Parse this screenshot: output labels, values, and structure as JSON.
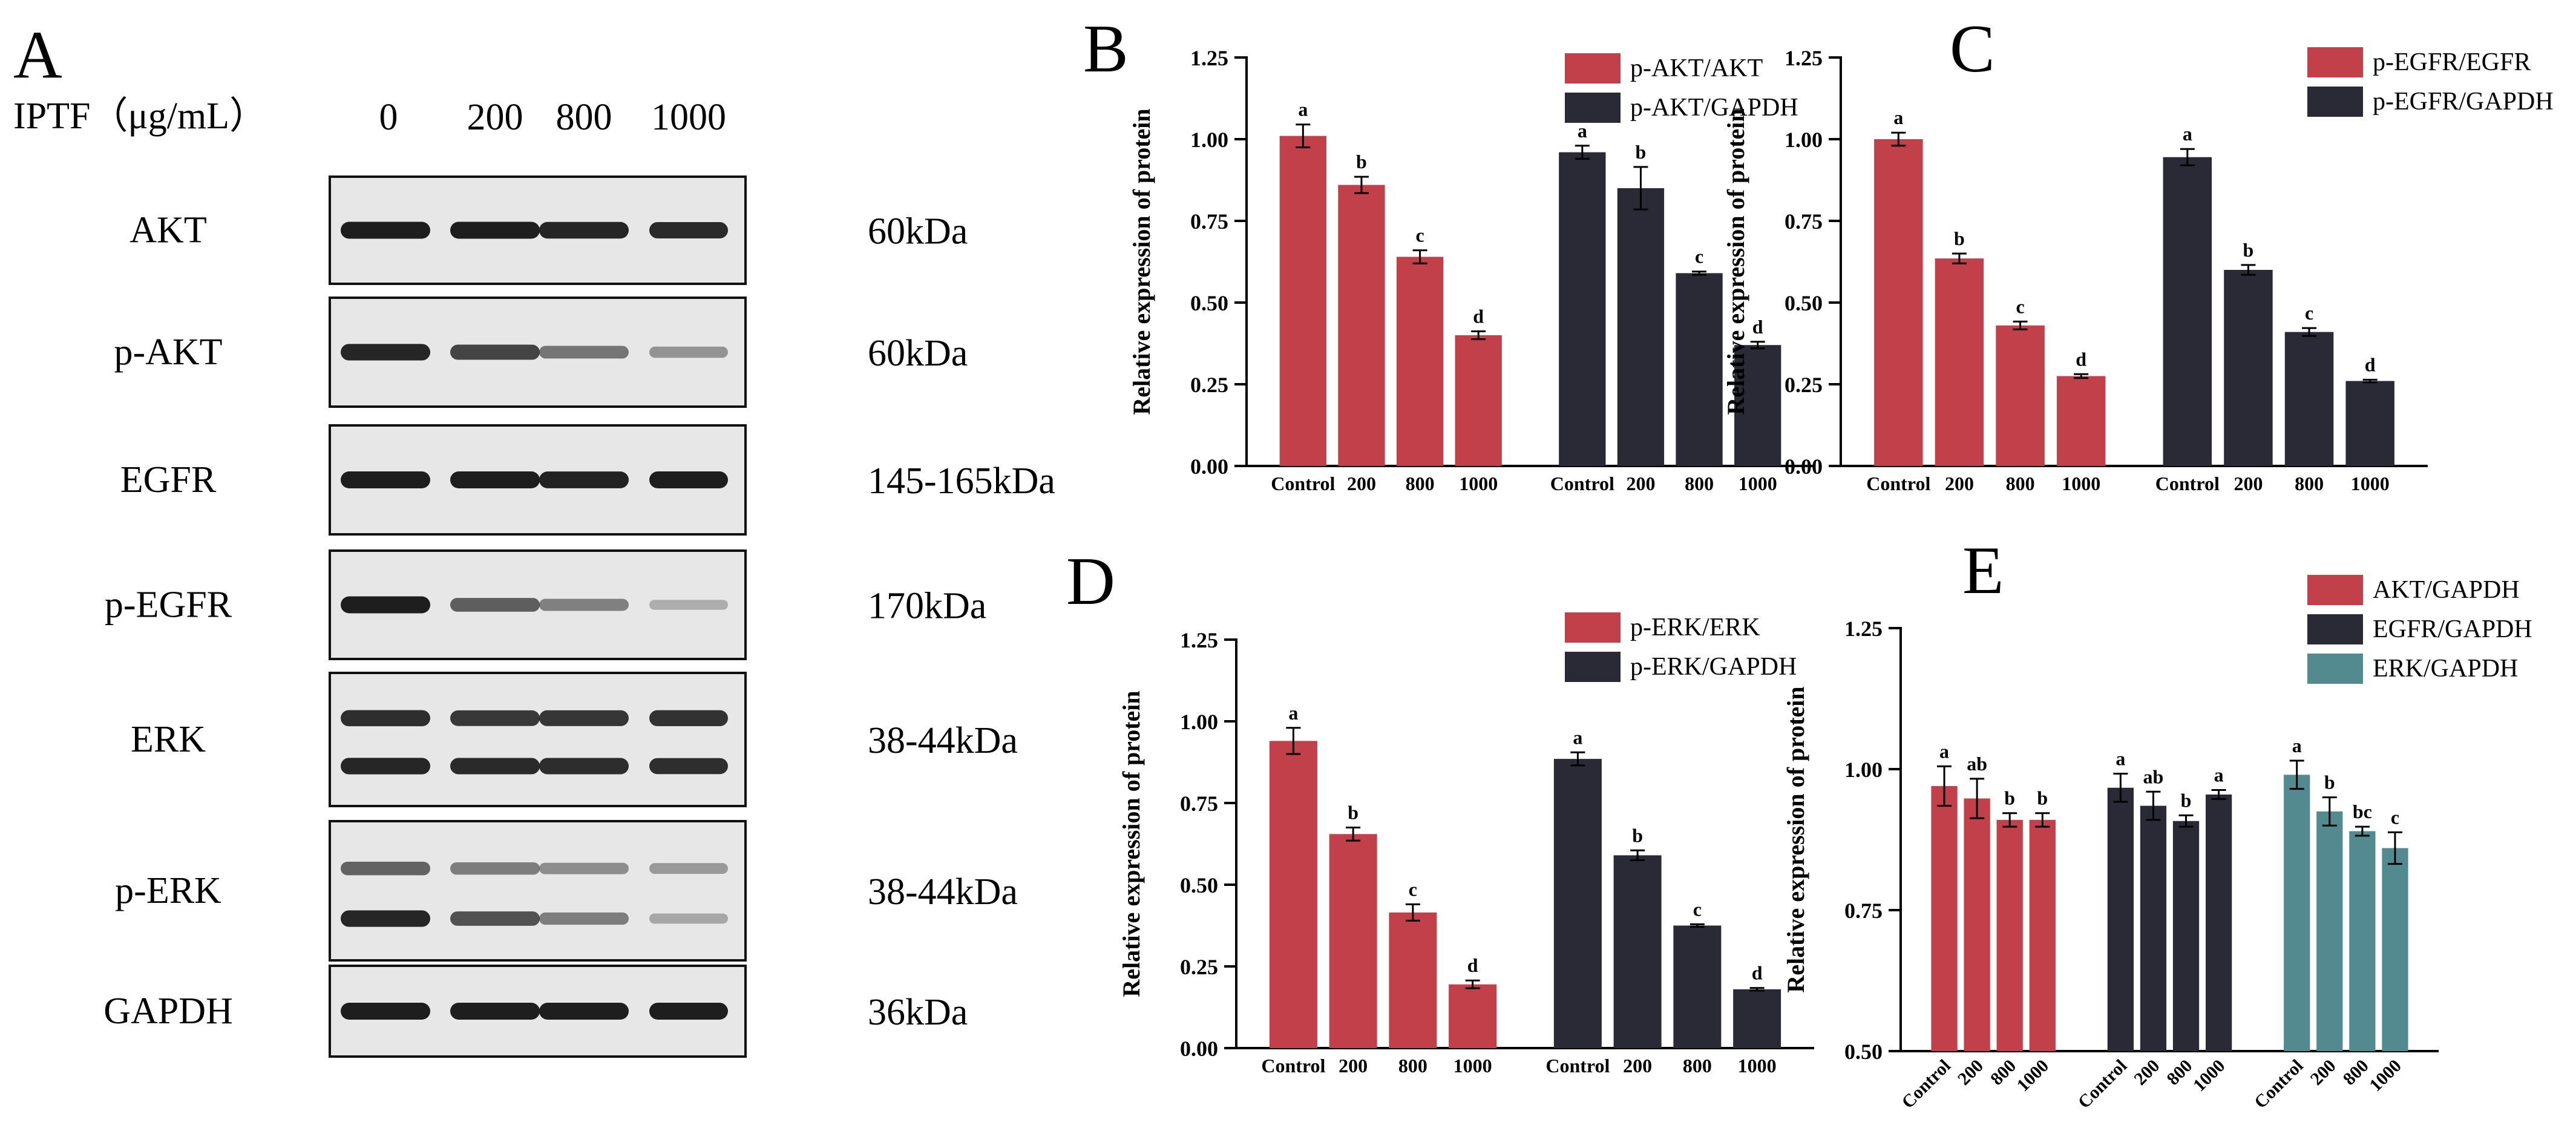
{
  "colors": {
    "red": "#C1404A",
    "dark": "#292A36",
    "teal": "#538A8F",
    "blot_bg": "#E7E7E7",
    "band": "#1E1E1E"
  },
  "panel_a": {
    "letter": "A",
    "treatment_label": "IPTF（μg/mL）",
    "doses": [
      "0",
      "200",
      "800",
      "1000"
    ],
    "rows": [
      {
        "protein": "AKT",
        "size": "60kDa",
        "bands": [
          [
            1,
            1,
            0.96,
            0.93
          ]
        ]
      },
      {
        "protein": "p-AKT",
        "size": "60kDa",
        "bands": [
          [
            0.95,
            0.78,
            0.5,
            0.32
          ]
        ]
      },
      {
        "protein": "EGFR",
        "size": "145-165kDa",
        "bands": [
          [
            1,
            1,
            0.98,
            1
          ]
        ]
      },
      {
        "protein": "p-EGFR",
        "size": "170kDa",
        "bands": [
          [
            1,
            0.62,
            0.42,
            0.16
          ]
        ]
      },
      {
        "protein": "ERK",
        "size": "38-44kDa",
        "bands": [
          [
            0.9,
            0.85,
            0.86,
            0.88
          ],
          [
            0.95,
            0.93,
            0.92,
            0.9
          ]
        ]
      },
      {
        "protein": "p-ERK",
        "size": "38-44kDa",
        "bands": [
          [
            0.6,
            0.45,
            0.35,
            0.28
          ],
          [
            0.95,
            0.7,
            0.45,
            0.2
          ]
        ]
      },
      {
        "protein": "GAPDH",
        "size": "36kDa",
        "bands": [
          [
            1,
            1,
            1,
            1
          ]
        ]
      }
    ]
  },
  "chart_data": [
    {
      "panel": "B",
      "type": "bar",
      "title": "",
      "ylabel": "Relative expression of protein",
      "xlabel": "",
      "ylim": [
        0,
        1.25
      ],
      "yticks": [
        "0.00",
        "0.25",
        "0.50",
        "0.75",
        "1.00",
        "1.25"
      ],
      "xtick_style": "horizontal",
      "categories": [
        "Control",
        "200",
        "800",
        "1000"
      ],
      "series": [
        {
          "name": "p-AKT/AKT",
          "color": "#C1404A",
          "values": [
            1.01,
            0.86,
            0.64,
            0.4
          ],
          "errors": [
            0.035,
            0.025,
            0.02,
            0.012
          ],
          "letters": [
            "a",
            "b",
            "c",
            "d"
          ]
        },
        {
          "name": "p-AKT/GAPDH",
          "color": "#292A36",
          "values": [
            0.96,
            0.85,
            0.59,
            0.37
          ],
          "errors": [
            0.02,
            0.065,
            0.005,
            0.01
          ],
          "letters": [
            "a",
            "b",
            "c",
            "d"
          ]
        }
      ]
    },
    {
      "panel": "C",
      "type": "bar",
      "title": "",
      "ylabel": "Relative expression of protein",
      "xlabel": "",
      "ylim": [
        0,
        1.25
      ],
      "yticks": [
        "0.00",
        "0.25",
        "0.50",
        "0.75",
        "1.00",
        "1.25"
      ],
      "xtick_style": "horizontal",
      "categories": [
        "Control",
        "200",
        "800",
        "1000"
      ],
      "series": [
        {
          "name": "p-EGFR/EGFR",
          "color": "#C1404A",
          "values": [
            1.0,
            0.635,
            0.43,
            0.275
          ],
          "errors": [
            0.02,
            0.015,
            0.012,
            0.006
          ],
          "letters": [
            "a",
            "b",
            "c",
            "d"
          ]
        },
        {
          "name": "p-EGFR/GAPDH",
          "color": "#292A36",
          "values": [
            0.945,
            0.6,
            0.41,
            0.26
          ],
          "errors": [
            0.025,
            0.015,
            0.012,
            0.004
          ],
          "letters": [
            "a",
            "b",
            "c",
            "d"
          ]
        }
      ]
    },
    {
      "panel": "D",
      "type": "bar",
      "title": "",
      "ylabel": "Relative expression of protein",
      "xlabel": "",
      "ylim": [
        0,
        1.25
      ],
      "yticks": [
        "0.00",
        "0.25",
        "0.50",
        "0.75",
        "1.00",
        "1.25"
      ],
      "xtick_style": "horizontal",
      "categories": [
        "Control",
        "200",
        "800",
        "1000"
      ],
      "series": [
        {
          "name": "p-ERK/ERK",
          "color": "#C1404A",
          "values": [
            0.94,
            0.655,
            0.415,
            0.195
          ],
          "errors": [
            0.04,
            0.02,
            0.025,
            0.012
          ],
          "letters": [
            "a",
            "b",
            "c",
            "d"
          ]
        },
        {
          "name": "p-ERK/GAPDH",
          "color": "#292A36",
          "values": [
            0.885,
            0.59,
            0.375,
            0.18
          ],
          "errors": [
            0.02,
            0.015,
            0.004,
            0.004
          ],
          "letters": [
            "a",
            "b",
            "c",
            "d"
          ]
        }
      ]
    },
    {
      "panel": "E",
      "type": "bar",
      "title": "",
      "ylabel": "Relative expression of protein",
      "xlabel": "",
      "ylim": [
        0.5,
        1.25
      ],
      "yticks": [
        "0.50",
        "0.75",
        "1.00",
        "1.25"
      ],
      "xtick_style": "rotated",
      "categories": [
        "Control",
        "200",
        "800",
        "1000"
      ],
      "series": [
        {
          "name": "AKT/GAPDH",
          "color": "#C1404A",
          "values": [
            0.97,
            0.948,
            0.91,
            0.91
          ],
          "errors": [
            0.035,
            0.035,
            0.012,
            0.012
          ],
          "letters": [
            "a",
            "ab",
            "b",
            "b"
          ]
        },
        {
          "name": "EGFR/GAPDH",
          "color": "#292A36",
          "values": [
            0.967,
            0.935,
            0.908,
            0.955
          ],
          "errors": [
            0.025,
            0.025,
            0.01,
            0.008
          ],
          "letters": [
            "a",
            "ab",
            "b",
            "a"
          ]
        },
        {
          "name": "ERK/GAPDH",
          "color": "#538A8F",
          "values": [
            0.99,
            0.925,
            0.89,
            0.86
          ],
          "errors": [
            0.025,
            0.025,
            0.008,
            0.028
          ],
          "letters": [
            "a",
            "b",
            "bc",
            "c"
          ]
        }
      ]
    }
  ]
}
